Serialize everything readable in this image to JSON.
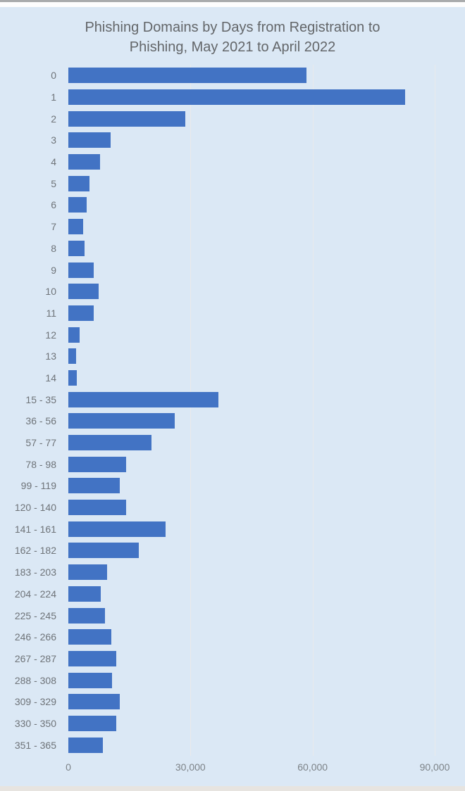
{
  "title": {
    "line1": "Phishing Domains by Days from Registration to",
    "line2": "Phishing, May 2021 to April 2022"
  },
  "colors": {
    "background": "#dbe8f5",
    "bar": "#4273c4",
    "title_text": "#636669",
    "axis_text": "#6e7378",
    "gridline": "#e9eaeb"
  },
  "chart_data": {
    "type": "bar",
    "orientation": "horizontal",
    "title": "Phishing Domains by Days from Registration to Phishing, May 2021 to April 2022",
    "xlabel": "",
    "ylabel": "",
    "legend": "none",
    "grid": "vertical gridlines at x ticks only",
    "xlim": [
      0,
      93000
    ],
    "x_ticks": [
      {
        "label": "0",
        "value": 0
      },
      {
        "label": "30,000",
        "value": 30000
      },
      {
        "label": "60,000",
        "value": 60000
      },
      {
        "label": "90,000",
        "value": 90000
      }
    ],
    "categories": [
      "0",
      "1",
      "2",
      "3",
      "4",
      "5",
      "6",
      "7",
      "8",
      "9",
      "10",
      "11",
      "12",
      "13",
      "14",
      "15 - 35",
      "36 - 56",
      "57 - 77",
      "78 - 98",
      "99 - 119",
      "120 - 140",
      "141 - 161",
      "162 - 182",
      "183 - 203",
      "204 - 224",
      "225 - 245",
      "246 - 266",
      "267 - 287",
      "288 - 308",
      "309 - 329",
      "330 - 350",
      "351 - 365"
    ],
    "values": [
      58500,
      82700,
      28700,
      10400,
      7700,
      5200,
      4500,
      3600,
      4000,
      6200,
      7400,
      6200,
      2800,
      1900,
      2100,
      36900,
      26100,
      20400,
      14200,
      12600,
      14200,
      23900,
      17300,
      9500,
      8000,
      9000,
      10600,
      11800,
      10700,
      12600,
      11700,
      8500
    ]
  }
}
